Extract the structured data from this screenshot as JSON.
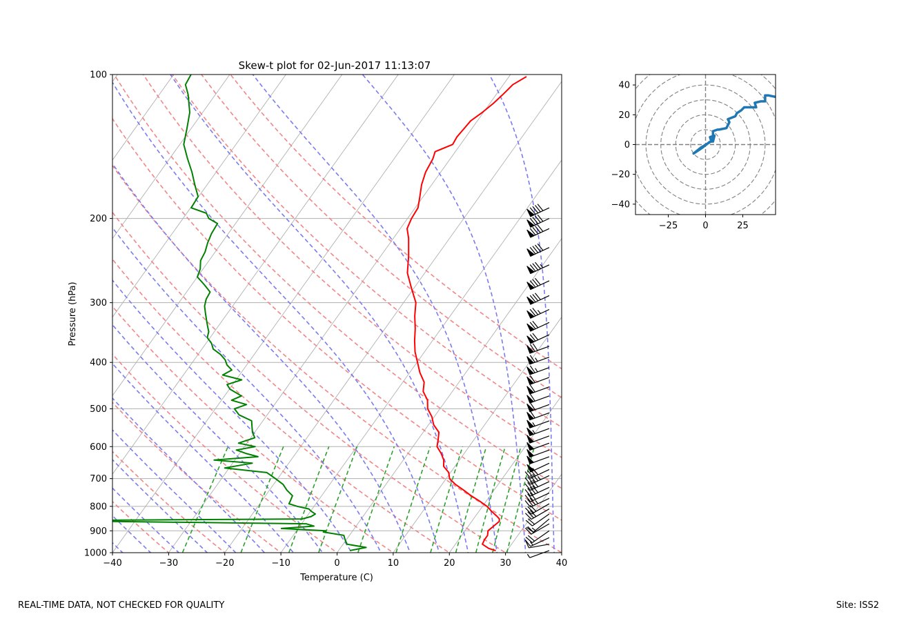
{
  "footer": {
    "left": "REAL-TIME DATA, NOT CHECKED FOR QUALITY",
    "right": "Site: ISS2"
  },
  "colors": {
    "temperature": "#ff0000",
    "dewpoint": "#008000",
    "dry_adiabats": "#f08080",
    "moist_adiabats": "#7b7bef",
    "mixing_ratio": "#2ca02c",
    "isotherms": "#b0b0b0",
    "hodograph": "#1f77b4",
    "barbs": "#000000"
  },
  "chart_data": [
    {
      "type": "line",
      "subtype": "skew-t log-p",
      "title": "Skew-t plot for 02-Jun-2017 11:13:07",
      "xlabel": "Temperature (C)",
      "ylabel": "Pressure (hPa)",
      "xlim": [
        -40,
        40
      ],
      "ylim": [
        1000,
        100
      ],
      "yscale": "log",
      "xticks": [
        -40,
        -30,
        -20,
        -10,
        0,
        10,
        20,
        30,
        40
      ],
      "yticks": [
        1000,
        900,
        800,
        700,
        600,
        500,
        400,
        300,
        200,
        100
      ],
      "grid": true,
      "series": [
        {
          "name": "Temperature",
          "pressure": [
            990,
            980,
            960,
            940,
            920,
            900,
            880,
            860,
            850,
            840,
            820,
            800,
            780,
            760,
            740,
            720,
            700,
            680,
            660,
            640,
            620,
            600,
            580,
            560,
            540,
            520,
            500,
            480,
            460,
            440,
            420,
            400,
            380,
            360,
            340,
            320,
            300,
            280,
            260,
            240,
            220,
            210,
            200,
            190,
            180,
            170,
            160,
            150,
            145,
            140,
            135,
            130,
            125,
            120,
            115,
            110,
            105,
            101
          ],
          "temperature": [
            28.0,
            26.5,
            24.8,
            24.6,
            24.6,
            24.1,
            24.5,
            24.9,
            24.6,
            23.9,
            22.3,
            20.8,
            18.8,
            16.6,
            14.6,
            12.4,
            10.6,
            9.7,
            8.0,
            7.2,
            5.9,
            4.3,
            3.6,
            2.8,
            0.9,
            -0.4,
            -2.2,
            -3.3,
            -5.2,
            -6.2,
            -8.2,
            -9.9,
            -11.7,
            -13.2,
            -14.6,
            -16.3,
            -17.8,
            -20.4,
            -23.1,
            -25.0,
            -27.3,
            -28.8,
            -29.3,
            -29.5,
            -30.6,
            -31.8,
            -32.7,
            -33.1,
            -33.6,
            -31.4,
            -31.6,
            -31.4,
            -31.2,
            -30.2,
            -29.4,
            -28.8,
            -28.3,
            -26.9
          ]
        },
        {
          "name": "Dewpoint",
          "pressure": [
            990,
            975,
            960,
            940,
            920,
            905,
            900,
            890,
            880,
            870,
            860,
            855,
            850,
            840,
            830,
            820,
            810,
            800,
            790,
            780,
            760,
            740,
            720,
            700,
            680,
            665,
            650,
            640,
            630,
            620,
            610,
            600,
            590,
            575,
            560,
            545,
            530,
            515,
            500,
            490,
            480,
            470,
            455,
            445,
            435,
            425,
            415,
            405,
            395,
            385,
            375,
            365,
            355,
            345,
            335,
            325,
            315,
            305,
            295,
            285,
            275,
            265,
            255,
            245,
            235,
            225,
            215,
            205,
            200,
            195,
            190,
            180,
            170,
            160,
            150,
            140,
            130,
            120,
            110,
            105,
            100
          ],
          "dewpoint": [
            2.0,
            4.5,
            0.7,
            -0.2,
            -1.0,
            -5.1,
            -4.8,
            -13.0,
            -7.5,
            -9.2,
            -45.0,
            -45.0,
            -10.5,
            -9.2,
            -8.8,
            -9.8,
            -10.6,
            -13.0,
            -14.8,
            -14.9,
            -15.2,
            -16.9,
            -18.3,
            -20.4,
            -22.7,
            -30.8,
            -26.5,
            -33.7,
            -26.3,
            -28.9,
            -31.0,
            -28.1,
            -31.5,
            -29.3,
            -30.4,
            -31.2,
            -32.0,
            -35.0,
            -36.6,
            -35.0,
            -38.2,
            -37.0,
            -39.9,
            -41.0,
            -39.0,
            -43.0,
            -42.0,
            -43.5,
            -44.5,
            -46.0,
            -48.0,
            -49.0,
            -50.5,
            -51.0,
            -52.0,
            -53.0,
            -54.0,
            -55.0,
            -55.6,
            -55.8,
            -57.8,
            -60.0,
            -60.5,
            -61.5,
            -61.8,
            -62.5,
            -63.0,
            -63.2,
            -65.4,
            -66.5,
            -69.9,
            -70.1,
            -72.2,
            -74.3,
            -76.8,
            -79.3,
            -80.7,
            -82.3,
            -84.9,
            -86.6,
            -86.9
          ]
        }
      ],
      "wind_barbs": {
        "pressure": [
          990,
          960,
          930,
          900,
          870,
          850,
          830,
          810,
          790,
          770,
          750,
          730,
          710,
          690,
          670,
          650,
          630,
          610,
          590,
          570,
          550,
          530,
          510,
          490,
          470,
          450,
          430,
          410,
          390,
          370,
          350,
          330,
          310,
          290,
          270,
          250,
          230,
          210,
          200,
          190
        ],
        "speed_kt": [
          6,
          12,
          15,
          22,
          18,
          14,
          20,
          28,
          32,
          35,
          30,
          38,
          42,
          45,
          42,
          48,
          48,
          50,
          52,
          52,
          55,
          55,
          58,
          58,
          60,
          60,
          62,
          65,
          65,
          68,
          72,
          72,
          75,
          78,
          80,
          85,
          88,
          90,
          92,
          90
        ],
        "direction_deg": [
          250,
          260,
          245,
          235,
          240,
          230,
          235,
          240,
          240,
          245,
          245,
          245,
          245,
          245,
          245,
          245,
          250,
          250,
          250,
          250,
          250,
          250,
          250,
          250,
          250,
          250,
          250,
          250,
          250,
          250,
          245,
          245,
          245,
          245,
          245,
          245,
          245,
          245,
          245,
          245
        ]
      }
    },
    {
      "type": "line",
      "subtype": "hodograph",
      "xlim": [
        -47,
        47
      ],
      "ylim": [
        -47,
        47
      ],
      "xticks": [
        -25,
        0,
        25
      ],
      "yticks": [
        -40,
        -20,
        0,
        20,
        40
      ],
      "rings": [
        10,
        20,
        30,
        40,
        50,
        60
      ],
      "u": [
        3,
        -2,
        -8,
        -3,
        2,
        5,
        4,
        3,
        6,
        5,
        5,
        8,
        9,
        14,
        16,
        15,
        20,
        21,
        24,
        26,
        28,
        31,
        34,
        33,
        37,
        40,
        40,
        42,
        47
      ],
      "v": [
        2,
        -2,
        -6,
        -2,
        1,
        3,
        2,
        5,
        6,
        2,
        9,
        10,
        10,
        11,
        15,
        17,
        19,
        21,
        23,
        25,
        25,
        25,
        25,
        28,
        29,
        29,
        33,
        33,
        32
      ]
    }
  ]
}
